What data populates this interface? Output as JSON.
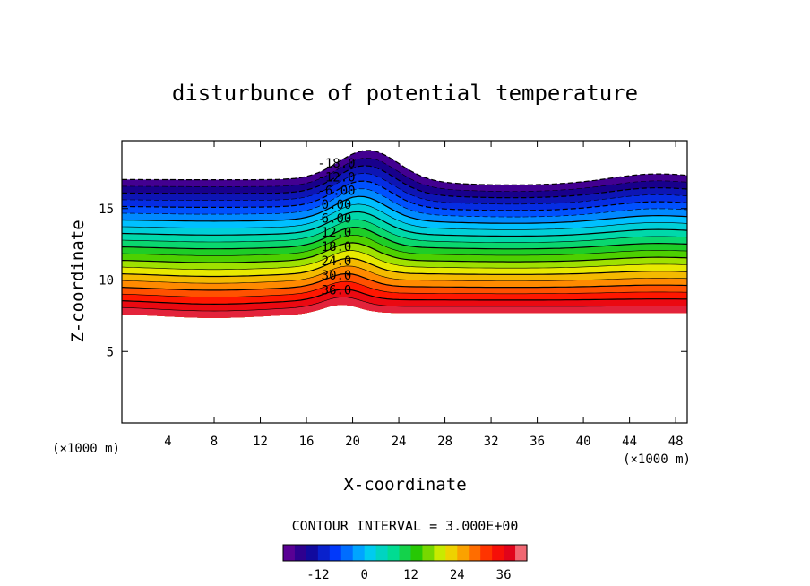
{
  "chart_data": {
    "type": "heatmap",
    "subtype": "filled-contour",
    "title": "disturbunce of potential temperature",
    "xlabel": "X-coordinate",
    "ylabel": "Z-coordinate",
    "x_unit": "(×1000 m)",
    "y_unit": "(×1000 m)",
    "xlim": [
      0,
      49
    ],
    "ylim": [
      0,
      19.75
    ],
    "x_ticks": [
      4,
      8,
      12,
      16,
      20,
      24,
      28,
      32,
      36,
      40,
      44,
      48
    ],
    "y_ticks": [
      5,
      10,
      15
    ],
    "contour_interval_label": "CONTOUR INTERVAL = 3.000E+00",
    "contour_interval": 3,
    "contour_labels": [
      "-18.0",
      "-12.0",
      "-6.00",
      "0.00",
      "6.00",
      "12.0",
      "18.0",
      "24.0",
      "30.0",
      "36.0"
    ],
    "contour_levels": [
      -18,
      -15,
      -12,
      -9,
      -6,
      -3,
      0,
      3,
      6,
      9,
      12,
      15,
      18,
      21,
      24,
      27,
      30,
      33,
      36,
      39
    ],
    "colorbar": {
      "ticks": [
        "-12",
        "0",
        "12",
        "24",
        "36"
      ],
      "min": -21,
      "max": 42
    },
    "field_profile": {
      "description_levels_z": "approximate z (km) of contour value at background and at crest x≈19",
      "background_base_z": 7.7,
      "background_top_z": 17.5,
      "crest_x": 19,
      "crest_top_z": 19.5
    }
  }
}
